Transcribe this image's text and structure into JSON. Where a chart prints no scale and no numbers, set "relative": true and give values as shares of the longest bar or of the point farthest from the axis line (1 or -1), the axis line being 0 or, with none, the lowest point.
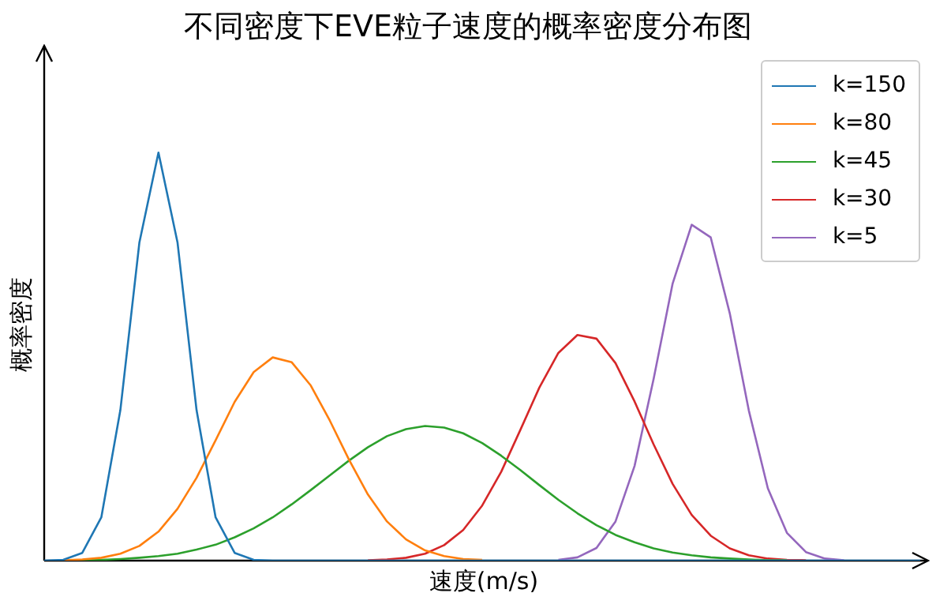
{
  "chart_data": {
    "type": "line",
    "title": "不同密度下EVE粒子速度的概率密度分布图",
    "xlabel": "速度(m/s)",
    "ylabel": "概率密度",
    "relative": true,
    "legend": "top right",
    "grid": false,
    "marker": "none",
    "categories": [
      null,
      null,
      null,
      null,
      null,
      null,
      null,
      null,
      null,
      null,
      null,
      null,
      null,
      null,
      null,
      null,
      null,
      null,
      null,
      null,
      null,
      null,
      null,
      null,
      null,
      null,
      null,
      null,
      null,
      null,
      null,
      null,
      null,
      null,
      null,
      null,
      null,
      null,
      null,
      null,
      null,
      null,
      null,
      null,
      null,
      null,
      null
    ],
    "series": [
      {
        "name": "k=150",
        "color": "#1f77b4",
        "values": [
          0,
          0.002,
          0.019,
          0.106,
          0.369,
          0.78,
          1,
          0.78,
          0.369,
          0.106,
          0.019,
          0.002,
          0,
          0,
          0,
          0,
          0,
          0,
          0,
          0,
          0,
          0,
          0,
          0,
          0,
          0,
          0,
          0,
          0,
          0,
          0,
          0,
          0,
          0,
          0,
          0,
          0,
          0,
          0,
          0,
          0,
          0,
          0,
          0,
          0,
          0,
          0
        ]
      },
      {
        "name": "k=80",
        "color": "#ff7f0e",
        "values": [
          null,
          0.001,
          0.003,
          0.007,
          0.017,
          0.036,
          0.071,
          0.127,
          0.203,
          0.295,
          0.389,
          0.462,
          0.498,
          0.486,
          0.429,
          0.343,
          0.248,
          0.162,
          0.096,
          0.052,
          0.025,
          0.011,
          0.004,
          0.002,
          null,
          null,
          null,
          null,
          null,
          null,
          null,
          null,
          null,
          null,
          null,
          null,
          null,
          null,
          null,
          null,
          null,
          null,
          null,
          null,
          null,
          null,
          null
        ]
      },
      {
        "name": "k=45",
        "color": "#2ca02c",
        "values": [
          null,
          0.001,
          0.001,
          0.002,
          0.004,
          0.007,
          0.011,
          0.017,
          0.027,
          0.039,
          0.057,
          0.079,
          0.106,
          0.138,
          0.173,
          0.209,
          0.245,
          0.278,
          0.305,
          0.322,
          0.33,
          0.326,
          0.312,
          0.288,
          0.257,
          0.222,
          0.185,
          0.149,
          0.116,
          0.087,
          0.063,
          0.045,
          0.03,
          0.02,
          0.013,
          0.008,
          0.005,
          0.003,
          0.001,
          0.001,
          null,
          null,
          null,
          null,
          null,
          null,
          null
        ]
      },
      {
        "name": "k=30",
        "color": "#d62728",
        "values": [
          null,
          null,
          null,
          null,
          null,
          null,
          null,
          null,
          null,
          null,
          null,
          null,
          null,
          null,
          null,
          null,
          null,
          0.001,
          0.003,
          0.007,
          0.017,
          0.038,
          0.075,
          0.135,
          0.218,
          0.32,
          0.424,
          0.509,
          0.553,
          0.544,
          0.484,
          0.39,
          0.285,
          0.188,
          0.112,
          0.061,
          0.03,
          0.013,
          0.005,
          0.002,
          0.001,
          null,
          null,
          null,
          null,
          null,
          null
        ]
      },
      {
        "name": "k=5",
        "color": "#9467bd",
        "values": [
          null,
          null,
          null,
          null,
          null,
          null,
          null,
          null,
          null,
          null,
          null,
          null,
          null,
          null,
          null,
          null,
          null,
          null,
          null,
          null,
          null,
          null,
          null,
          null,
          null,
          null,
          null,
          0.002,
          0.008,
          0.031,
          0.096,
          0.232,
          0.445,
          0.679,
          0.823,
          0.792,
          0.606,
          0.368,
          0.177,
          0.068,
          0.021,
          0.005,
          0.001,
          null,
          null,
          null,
          null
        ]
      }
    ]
  }
}
